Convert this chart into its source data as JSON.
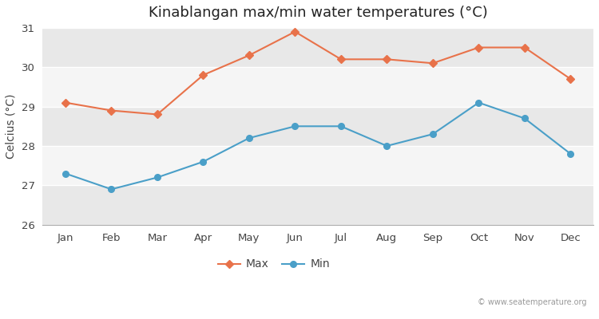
{
  "title": "Kinablangan max/min water temperatures (°C)",
  "ylabel": "Celcius (°C)",
  "months": [
    "Jan",
    "Feb",
    "Mar",
    "Apr",
    "May",
    "Jun",
    "Jul",
    "Aug",
    "Sep",
    "Oct",
    "Nov",
    "Dec"
  ],
  "max_values": [
    29.1,
    28.9,
    28.8,
    29.8,
    30.3,
    30.9,
    30.2,
    30.2,
    30.1,
    30.5,
    30.5,
    29.7
  ],
  "min_values": [
    27.3,
    26.9,
    27.2,
    27.6,
    28.2,
    28.5,
    28.5,
    28.0,
    28.3,
    29.1,
    28.7,
    27.8
  ],
  "max_color": "#e8724a",
  "min_color": "#4a9fc8",
  "ylim": [
    26,
    31
  ],
  "yticks": [
    26,
    27,
    28,
    29,
    30,
    31
  ],
  "fig_bg_color": "#ffffff",
  "band_colors": [
    "#e8e8e8",
    "#f5f5f5"
  ],
  "watermark": "© www.seatemperature.org",
  "title_fontsize": 13,
  "label_fontsize": 10,
  "tick_fontsize": 9.5,
  "legend_fontsize": 10
}
